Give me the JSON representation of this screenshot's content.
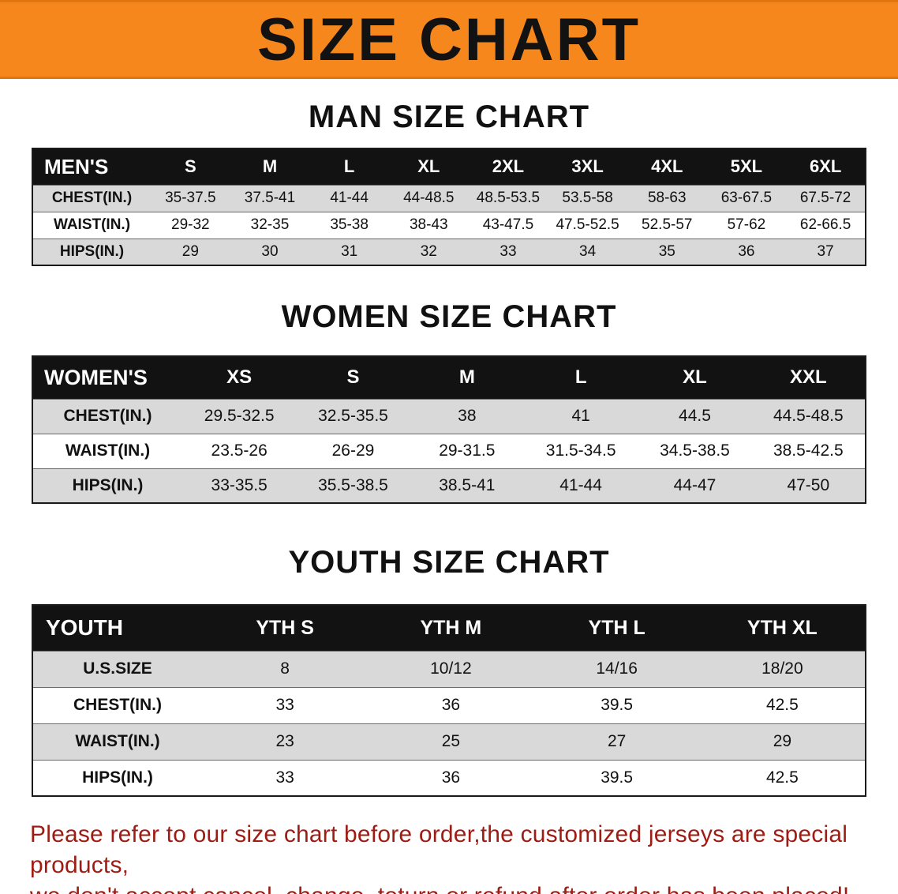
{
  "banner": {
    "title": "SIZE CHART",
    "bg_color": "#f6871d",
    "text_color": "#121212"
  },
  "sections": [
    {
      "heading": "MAN SIZE CHART",
      "table": {
        "corner_label": "MEN'S",
        "columns": [
          "S",
          "M",
          "L",
          "XL",
          "2XL",
          "3XL",
          "4XL",
          "5XL",
          "6XL"
        ],
        "rows": [
          {
            "label": "CHEST(IN.)",
            "values": [
              "35-37.5",
              "37.5-41",
              "41-44",
              "44-48.5",
              "48.5-53.5",
              "53.5-58",
              "58-63",
              "63-67.5",
              "67.5-72"
            ]
          },
          {
            "label": "WAIST(IN.)",
            "values": [
              "29-32",
              "32-35",
              "35-38",
              "38-43",
              "43-47.5",
              "47.5-52.5",
              "52.5-57",
              "57-62",
              "62-66.5"
            ]
          },
          {
            "label": "HIPS(IN.)",
            "values": [
              "29",
              "30",
              "31",
              "32",
              "33",
              "34",
              "35",
              "36",
              "37"
            ]
          }
        ]
      }
    },
    {
      "heading": "WOMEN SIZE CHART",
      "table": {
        "corner_label": "WOMEN'S",
        "columns": [
          "XS",
          "S",
          "M",
          "L",
          "XL",
          "XXL"
        ],
        "rows": [
          {
            "label": "CHEST(IN.)",
            "values": [
              "29.5-32.5",
              "32.5-35.5",
              "38",
              "41",
              "44.5",
              "44.5-48.5"
            ]
          },
          {
            "label": "WAIST(IN.)",
            "values": [
              "23.5-26",
              "26-29",
              "29-31.5",
              "31.5-34.5",
              "34.5-38.5",
              "38.5-42.5"
            ]
          },
          {
            "label": "HIPS(IN.)",
            "values": [
              "33-35.5",
              "35.5-38.5",
              "38.5-41",
              "41-44",
              "44-47",
              "47-50"
            ]
          }
        ]
      }
    },
    {
      "heading": "YOUTH SIZE CHART",
      "table": {
        "corner_label": "YOUTH",
        "columns": [
          "YTH S",
          "YTH M",
          "YTH L",
          "YTH XL"
        ],
        "rows": [
          {
            "label": "U.S.SIZE",
            "values": [
              "8",
              "10/12",
              "14/16",
              "18/20"
            ]
          },
          {
            "label": "CHEST(IN.)",
            "values": [
              "33",
              "36",
              "39.5",
              "42.5"
            ]
          },
          {
            "label": "WAIST(IN.)",
            "values": [
              "23",
              "25",
              "27",
              "29"
            ]
          },
          {
            "label": "HIPS(IN.)",
            "values": [
              "33",
              "36",
              "39.5",
              "42.5"
            ]
          }
        ]
      }
    }
  ],
  "footer": {
    "line1": "Please refer to our size chart before order,the customized jerseys are special products,",
    "line2": "we don't accept cancel, change, teturn or refund after order has been placed!",
    "text_color": "#9e1c13"
  },
  "colors": {
    "header_row_bg": "#121212",
    "header_row_text": "#ffffff",
    "shaded_row_bg": "#d9d9d9"
  }
}
